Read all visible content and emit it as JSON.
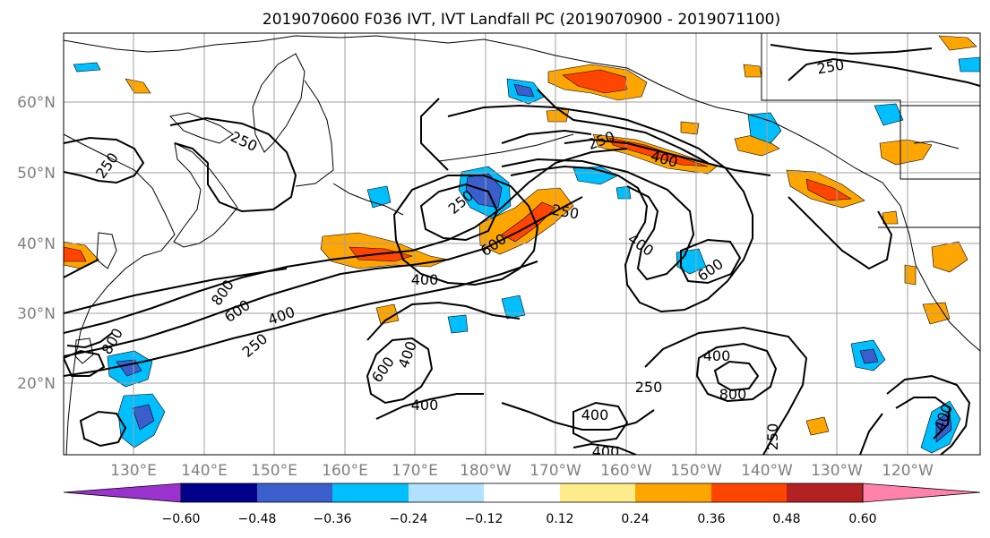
{
  "title": "2019070600 F036 IVT, IVT Landfall PC (2019070900 - 2019071100)",
  "lat_labels": [
    "20°N",
    "30°N",
    "40°N",
    "50°N",
    "60°N"
  ],
  "lon_labels": [
    "130°E",
    "140°E",
    "150°E",
    "160°E",
    "170°E",
    "180°W",
    "170°W",
    "160°W",
    "150°W",
    "140°W",
    "130°W",
    "120°W"
  ],
  "colorbar": {
    "colors": [
      "#9a32cd",
      "#00008b",
      "#3a5fcd",
      "#00bfff",
      "#b0e2ff",
      "#ffffff",
      "#ffec8b",
      "#ffa500",
      "#ff4500",
      "#b22222",
      "#ff82ab"
    ],
    "tick_labels": [
      "−0.60",
      "−0.48",
      "−0.36",
      "−0.24",
      "−0.12",
      "0.12",
      "0.24",
      "0.36",
      "0.48",
      "0.60"
    ]
  },
  "contour_labels": [
    "250",
    "250",
    "250",
    "250",
    "250",
    "250",
    "250",
    "250",
    "250",
    "400",
    "400",
    "400",
    "400",
    "400",
    "400",
    "400",
    "400",
    "400",
    "400",
    "600",
    "600",
    "600",
    "600",
    "800",
    "800",
    "800"
  ]
}
